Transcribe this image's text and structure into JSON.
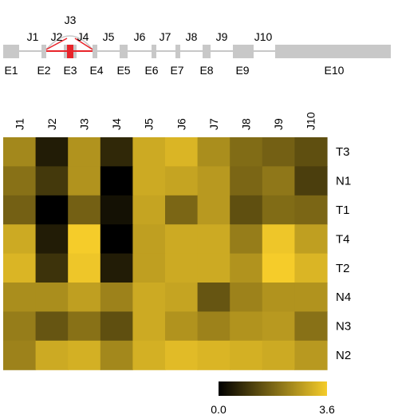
{
  "chart_data": [
    {
      "type": "diagram",
      "junctions": [
        {
          "label": "J1"
        },
        {
          "label": "J2"
        },
        {
          "label": "J3"
        },
        {
          "label": "J4"
        },
        {
          "label": "J5"
        },
        {
          "label": "J6"
        },
        {
          "label": "J7"
        },
        {
          "label": "J8"
        },
        {
          "label": "J9"
        },
        {
          "label": "J10"
        }
      ],
      "exons": [
        "E1",
        "E2",
        "E3",
        "E4",
        "E5",
        "E6",
        "E7",
        "E8",
        "E9",
        "E10"
      ],
      "highlight_color": "#e8242a",
      "exon_color": "#c8c8c8"
    },
    {
      "type": "heatmap",
      "columns": [
        "J1",
        "J2",
        "J3",
        "J4",
        "J5",
        "J6",
        "J7",
        "J8",
        "J9",
        "J10"
      ],
      "rows": [
        "T3",
        "N1",
        "T1",
        "T4",
        "T2",
        "N4",
        "N3",
        "N2"
      ],
      "values": [
        [
          2.4,
          0.5,
          2.6,
          0.7,
          3.0,
          3.2,
          2.5,
          1.9,
          1.7,
          1.4
        ],
        [
          2.0,
          1.0,
          2.6,
          0.0,
          3.0,
          2.9,
          2.7,
          1.8,
          2.1,
          1.1
        ],
        [
          1.7,
          0.0,
          1.7,
          0.3,
          2.9,
          1.8,
          2.7,
          1.4,
          1.9,
          1.8
        ],
        [
          3.0,
          0.5,
          3.6,
          0.0,
          2.8,
          3.0,
          3.0,
          2.2,
          3.5,
          2.8
        ],
        [
          3.2,
          0.9,
          3.5,
          0.5,
          2.8,
          3.0,
          3.0,
          2.6,
          3.6,
          3.2
        ],
        [
          2.5,
          2.5,
          2.8,
          2.3,
          3.0,
          2.9,
          1.5,
          2.3,
          2.6,
          2.6
        ],
        [
          2.2,
          1.5,
          2.0,
          1.4,
          3.0,
          2.6,
          2.3,
          2.6,
          2.7,
          2.0
        ],
        [
          2.3,
          3.0,
          3.1,
          2.4,
          3.1,
          3.3,
          3.2,
          3.1,
          3.0,
          2.7
        ]
      ],
      "colorbar": {
        "min_label": "0.0",
        "max_label": "3.6",
        "min": 0.0,
        "max": 3.6,
        "color_low": "#000000",
        "color_high": "#f5cc2a"
      }
    }
  ]
}
